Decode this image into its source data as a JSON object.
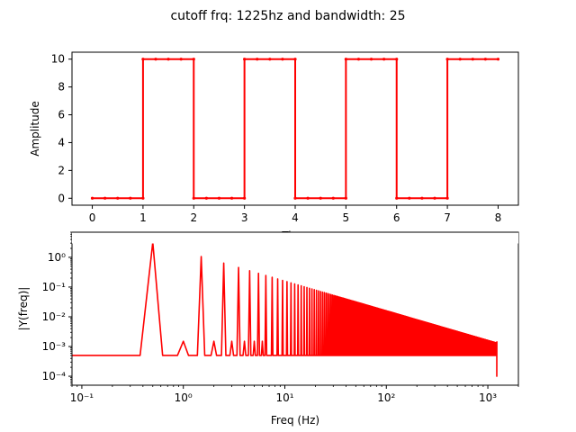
{
  "figure": {
    "title": "cutoff frq: 1225hz and bandwidth: 25"
  },
  "chart_data": [
    {
      "type": "line",
      "xlabel": "Time",
      "ylabel": "Amplitude",
      "xlim": [
        -0.4,
        8.4
      ],
      "ylim": [
        -0.5,
        10.5
      ],
      "xticks": [
        0,
        1,
        2,
        3,
        4,
        5,
        6,
        7,
        8
      ],
      "yticks": [
        0,
        2,
        4,
        6,
        8,
        10
      ],
      "series": [
        {
          "color": "#ff0000",
          "marker": "dot",
          "x": [
            0,
            0.25,
            0.5,
            0.75,
            1,
            1,
            1.25,
            1.5,
            1.75,
            2,
            2,
            2.25,
            2.5,
            2.75,
            3,
            3,
            3.25,
            3.5,
            3.75,
            4,
            4,
            4.25,
            4.5,
            4.75,
            5,
            5,
            5.25,
            5.5,
            5.75,
            6,
            6,
            6.25,
            6.5,
            6.75,
            7,
            7,
            7.25,
            7.5,
            7.75,
            8
          ],
          "y": [
            0,
            0,
            0,
            0,
            0,
            10,
            10,
            10,
            10,
            10,
            0,
            0,
            0,
            0,
            0,
            10,
            10,
            10,
            10,
            10,
            0,
            0,
            0,
            0,
            0,
            10,
            10,
            10,
            10,
            10,
            0,
            0,
            0,
            0,
            0,
            10,
            10,
            10,
            10,
            10
          ]
        }
      ]
    },
    {
      "type": "line",
      "xlabel": "Freq (Hz)",
      "ylabel": "|Y(freq)|",
      "xscale": "log",
      "yscale": "log",
      "xlim": [
        0.08,
        2000
      ],
      "ylim": [
        5e-05,
        7
      ],
      "xticks": [
        0.1,
        1,
        10,
        100,
        1000
      ],
      "xtick_labels": [
        "10⁻¹",
        "10⁰",
        "10¹",
        "10²",
        "10³"
      ],
      "yticks": [
        0.0001,
        0.001,
        0.01,
        0.1,
        1
      ],
      "ytick_labels": [
        "10⁻⁴",
        "10⁻³",
        "10⁻²",
        "10⁻¹",
        "10⁰"
      ],
      "series": [
        {
          "color": "#ff0000",
          "x": [
            0.08,
            0.375,
            0.5,
            0.625,
            0.875,
            1.0,
            1.125,
            1.375,
            1.5,
            1.625,
            1.875,
            2.0,
            2.125,
            2.375,
            2.5,
            2.625,
            2.875,
            3.0,
            3.125,
            3.375,
            3.5,
            3.625
          ],
          "y": [
            0.0005,
            0.0005,
            3.2,
            0.0005,
            0.0005,
            0.0015,
            0.0005,
            0.0005,
            1.05,
            0.0005,
            0.0005,
            0.0015,
            0.0005,
            0.0005,
            0.6,
            0.0005,
            0.0005,
            0.0015,
            0.0005,
            0.0005,
            0.45,
            0.0005
          ],
          "peaks": {
            "odd_harmonic_start": 0.5,
            "odd_harmonic_step": 1,
            "odd_harmonic_peak_at_0.5": 3.2,
            "odd_harmonic_peak_at_1225": 0.0013,
            "even_harmonic_level": 0.0015,
            "baseline": 0.0005,
            "cutoff": 1225,
            "min_at_cutoff": 0.0001
          }
        }
      ]
    }
  ]
}
